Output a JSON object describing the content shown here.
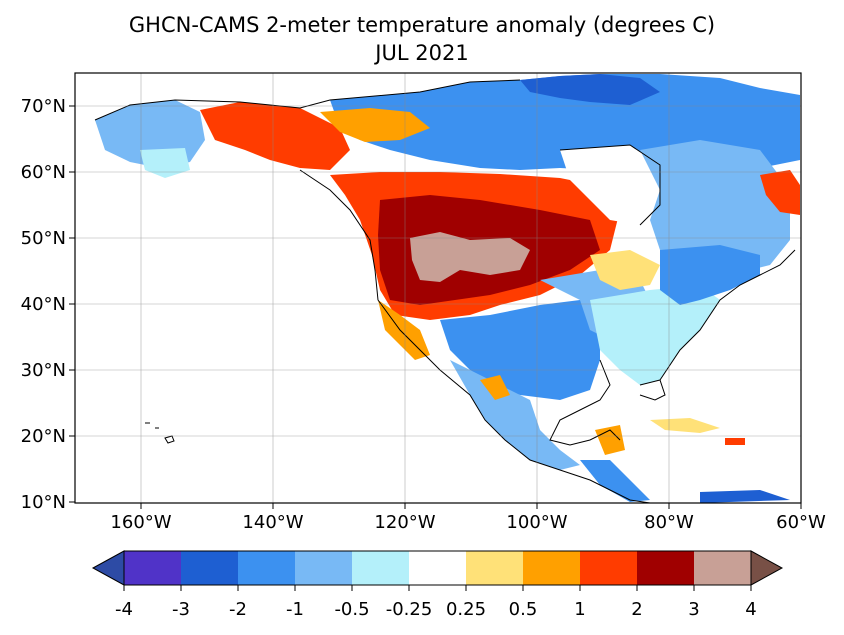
{
  "title": "GHCN-CAMS 2-meter temperature anomaly (degrees C)",
  "subtitle": "JUL 2021",
  "map": {
    "lon_range": [
      -170,
      -60
    ],
    "lat_range": [
      10,
      75
    ],
    "x_ticks": [
      {
        "lon": -160,
        "label": "160°W"
      },
      {
        "lon": -140,
        "label": "140°W"
      },
      {
        "lon": -120,
        "label": "120°W"
      },
      {
        "lon": -100,
        "label": "100°W"
      },
      {
        "lon": -80,
        "label": "80°W"
      },
      {
        "lon": -60,
        "label": "60°W"
      }
    ],
    "y_ticks": [
      {
        "lat": 70,
        "label": "70°N"
      },
      {
        "lat": 60,
        "label": "60°N"
      },
      {
        "lat": 50,
        "label": "50°N"
      },
      {
        "lat": 40,
        "label": "40°N"
      },
      {
        "lat": 30,
        "label": "30°N"
      },
      {
        "lat": 20,
        "label": "20°N"
      },
      {
        "lat": 10,
        "label": "10°N"
      }
    ],
    "gridlines": true
  },
  "colorbar": {
    "labels": [
      "-4",
      "-3",
      "-2",
      "-1",
      "-0.5",
      "-0.25",
      "0.25",
      "0.5",
      "1",
      "2",
      "3",
      "4"
    ],
    "colors": [
      "#5033c8",
      "#1e5fd2",
      "#3c91f0",
      "#78b9f5",
      "#b4f0fa",
      "#ffffff",
      "#ffe178",
      "#ffa000",
      "#ff3c00",
      "#a00000",
      "#c8a096"
    ],
    "under_color": "#2d4ba5",
    "over_color": "#785046",
    "extend": "both"
  }
}
